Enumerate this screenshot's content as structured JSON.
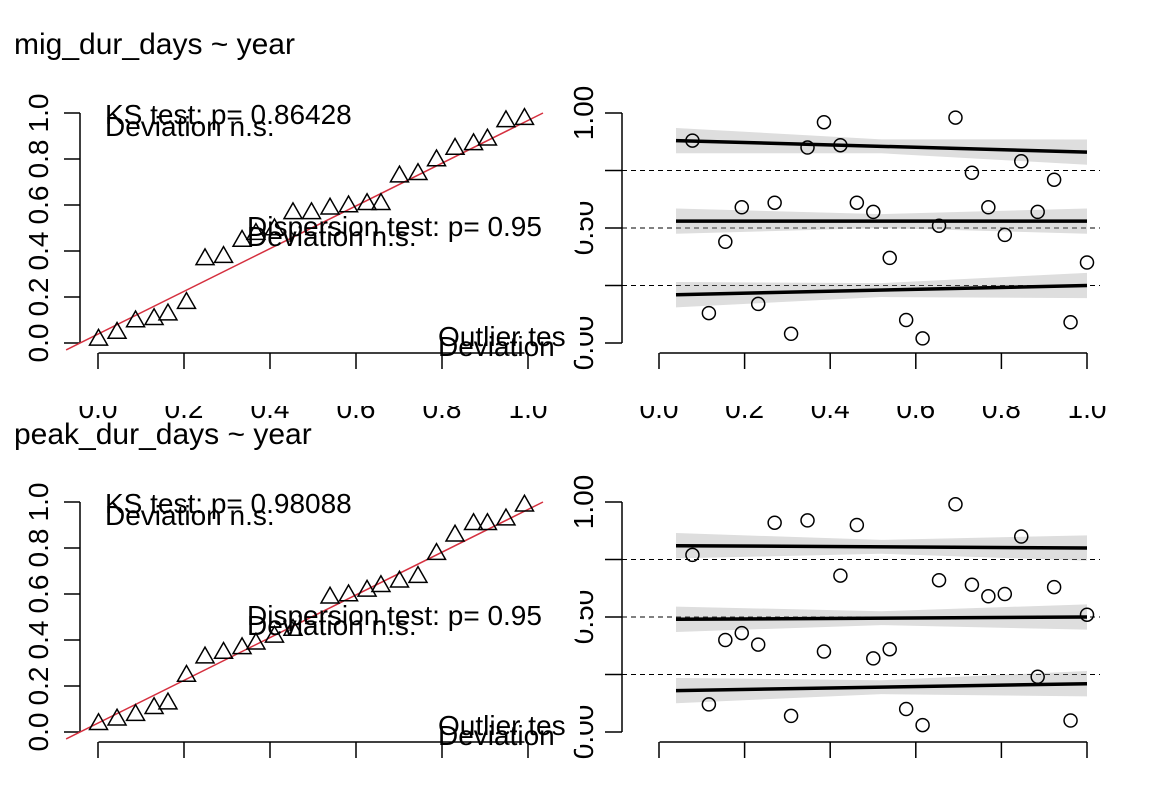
{
  "chart_data": [
    {
      "type": "scatter",
      "title": "mig_dur_days ~ year",
      "qq": {
        "ks_text": "KS test: p= 0.86428",
        "ks_dev": "Deviation  n.s.",
        "disp_text": "Dispersion test: p= 0.95",
        "disp_dev": "Deviation  n.s.",
        "out_text": "Outlier tes",
        "out_dev": "Deviation",
        "ylim": [
          0,
          1
        ],
        "xlim": [
          0,
          1
        ],
        "yticks": [
          "0.0",
          "0.2",
          "0.4",
          "0.6",
          "0.8",
          "1.0"
        ],
        "xticks": [
          "0.0",
          "0.2",
          "0.4",
          "0.6",
          "0.8",
          "1.0"
        ],
        "points": [
          [
            0.04,
            0.02
          ],
          [
            0.08,
            0.05
          ],
          [
            0.12,
            0.1
          ],
          [
            0.16,
            0.11
          ],
          [
            0.19,
            0.13
          ],
          [
            0.23,
            0.18
          ],
          [
            0.27,
            0.37
          ],
          [
            0.31,
            0.38
          ],
          [
            0.35,
            0.45
          ],
          [
            0.38,
            0.48
          ],
          [
            0.42,
            0.5
          ],
          [
            0.46,
            0.57
          ],
          [
            0.5,
            0.57
          ],
          [
            0.54,
            0.59
          ],
          [
            0.58,
            0.6
          ],
          [
            0.62,
            0.61
          ],
          [
            0.65,
            0.61
          ],
          [
            0.69,
            0.73
          ],
          [
            0.73,
            0.74
          ],
          [
            0.77,
            0.8
          ],
          [
            0.81,
            0.85
          ],
          [
            0.85,
            0.87
          ],
          [
            0.88,
            0.89
          ],
          [
            0.92,
            0.97
          ],
          [
            0.96,
            0.98
          ]
        ]
      },
      "resid": {
        "xlim": [
          0,
          1
        ],
        "ylim": [
          0,
          1
        ],
        "yticks": [
          "0.00",
          "0.50",
          "1.00"
        ],
        "xticks": [
          "0.0",
          "0.2",
          "0.4",
          "0.6",
          "0.8",
          "1.0"
        ],
        "points": [
          [
            0.04,
            0.88
          ],
          [
            0.08,
            0.13
          ],
          [
            0.12,
            0.44
          ],
          [
            0.16,
            0.59
          ],
          [
            0.2,
            0.17
          ],
          [
            0.24,
            0.61
          ],
          [
            0.28,
            0.04
          ],
          [
            0.32,
            0.85
          ],
          [
            0.36,
            0.96
          ],
          [
            0.4,
            0.86
          ],
          [
            0.44,
            0.61
          ],
          [
            0.48,
            0.57
          ],
          [
            0.52,
            0.37
          ],
          [
            0.56,
            0.1
          ],
          [
            0.6,
            0.02
          ],
          [
            0.64,
            0.51
          ],
          [
            0.68,
            0.98
          ],
          [
            0.72,
            0.74
          ],
          [
            0.76,
            0.59
          ],
          [
            0.8,
            0.47
          ],
          [
            0.84,
            0.79
          ],
          [
            0.88,
            0.57
          ],
          [
            0.92,
            0.71
          ],
          [
            0.96,
            0.09
          ],
          [
            1.0,
            0.35
          ]
        ],
        "quantile_lines": [
          [
            0.21,
            0.25
          ],
          [
            0.53,
            0.53
          ],
          [
            0.88,
            0.83
          ]
        ]
      }
    },
    {
      "type": "scatter",
      "title": "peak_dur_days ~ year",
      "qq": {
        "ks_text": "KS test: p= 0.98088",
        "ks_dev": "Deviation  n.s.",
        "disp_text": "Dispersion test: p= 0.95",
        "disp_dev": "Deviation  n.s.",
        "out_text": "Outlier tes",
        "out_dev": "Deviation",
        "ylim": [
          0,
          1
        ],
        "xlim": [
          0,
          1
        ],
        "yticks": [
          "0.0",
          "0.2",
          "0.4",
          "0.6",
          "0.8",
          "1.0"
        ],
        "xticks": [
          "0.0",
          "0.2",
          "0.4",
          "0.6",
          "0.8",
          "1.0"
        ],
        "points": [
          [
            0.04,
            0.04
          ],
          [
            0.08,
            0.06
          ],
          [
            0.12,
            0.08
          ],
          [
            0.16,
            0.11
          ],
          [
            0.19,
            0.13
          ],
          [
            0.23,
            0.25
          ],
          [
            0.27,
            0.33
          ],
          [
            0.31,
            0.35
          ],
          [
            0.35,
            0.37
          ],
          [
            0.38,
            0.39
          ],
          [
            0.42,
            0.42
          ],
          [
            0.46,
            0.45
          ],
          [
            0.54,
            0.59
          ],
          [
            0.58,
            0.6
          ],
          [
            0.62,
            0.62
          ],
          [
            0.65,
            0.64
          ],
          [
            0.69,
            0.66
          ],
          [
            0.73,
            0.68
          ],
          [
            0.77,
            0.78
          ],
          [
            0.81,
            0.86
          ],
          [
            0.85,
            0.91
          ],
          [
            0.88,
            0.91
          ],
          [
            0.92,
            0.93
          ],
          [
            0.96,
            0.99
          ]
        ]
      },
      "resid": {
        "xlim": [
          0,
          1
        ],
        "ylim": [
          0,
          1
        ],
        "yticks": [
          "0.00",
          "0.50",
          "1.00"
        ],
        "xticks": [
          "0.0",
          "0.2",
          "0.4",
          "0.6",
          "0.8",
          "1.0"
        ],
        "points": [
          [
            0.04,
            0.77
          ],
          [
            0.08,
            0.12
          ],
          [
            0.12,
            0.4
          ],
          [
            0.16,
            0.43
          ],
          [
            0.2,
            0.38
          ],
          [
            0.24,
            0.91
          ],
          [
            0.28,
            0.07
          ],
          [
            0.32,
            0.92
          ],
          [
            0.36,
            0.35
          ],
          [
            0.4,
            0.68
          ],
          [
            0.44,
            0.9
          ],
          [
            0.48,
            0.32
          ],
          [
            0.52,
            0.36
          ],
          [
            0.56,
            0.1
          ],
          [
            0.6,
            0.03
          ],
          [
            0.64,
            0.66
          ],
          [
            0.68,
            0.99
          ],
          [
            0.72,
            0.64
          ],
          [
            0.76,
            0.59
          ],
          [
            0.8,
            0.6
          ],
          [
            0.84,
            0.85
          ],
          [
            0.88,
            0.24
          ],
          [
            0.92,
            0.63
          ],
          [
            0.96,
            0.05
          ],
          [
            1.0,
            0.51
          ]
        ],
        "quantile_lines": [
          [
            0.18,
            0.21
          ],
          [
            0.49,
            0.5
          ],
          [
            0.81,
            0.8
          ]
        ]
      }
    }
  ]
}
